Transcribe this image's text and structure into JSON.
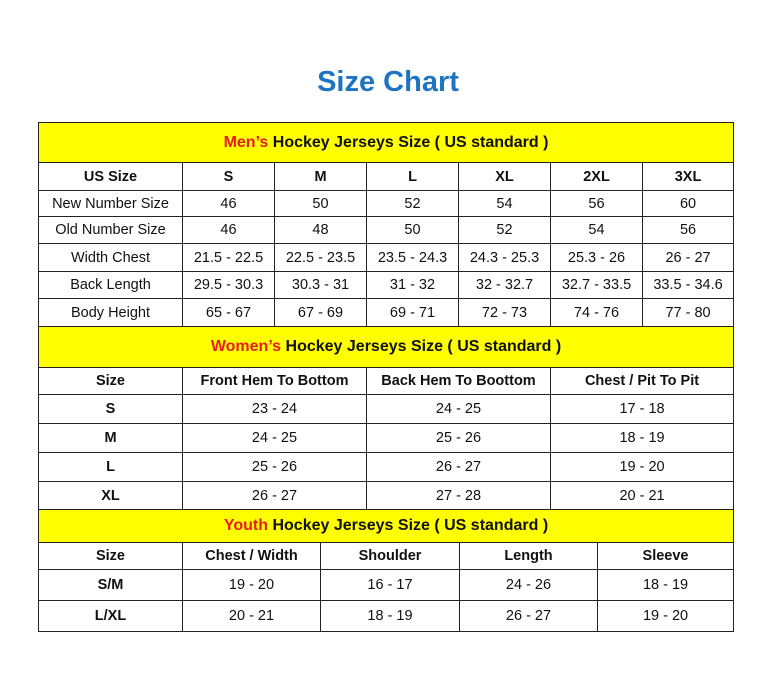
{
  "title": "Size Chart",
  "men": {
    "title_highlight": "Men’s",
    "title_rest": " Hockey Jerseys Size ( US standard )",
    "headers": [
      "US Size",
      "S",
      "M",
      "L",
      "XL",
      "2XL",
      "3XL"
    ],
    "rows": [
      [
        "New Number Size",
        "46",
        "50",
        "52",
        "54",
        "56",
        "60"
      ],
      [
        "Old Number Size",
        "46",
        "48",
        "50",
        "52",
        "54",
        "56"
      ],
      [
        "Width Chest",
        "21.5 - 22.5",
        "22.5 - 23.5",
        "23.5 - 24.3",
        "24.3 - 25.3",
        "25.3 - 26",
        "26 - 27"
      ],
      [
        "Back Length",
        "29.5 - 30.3",
        "30.3 - 31",
        "31 - 32",
        "32 - 32.7",
        "32.7 - 33.5",
        "33.5 - 34.6"
      ],
      [
        "Body Height",
        "65 - 67",
        "67 - 69",
        "69 - 71",
        "72 - 73",
        "74 - 76",
        "77 - 80"
      ]
    ]
  },
  "women": {
    "title_highlight": "Women’s",
    "title_rest": " Hockey Jerseys Size ( US standard )",
    "headers": [
      "Size",
      "Front Hem To Bottom",
      "Back Hem To Boottom",
      "Chest / Pit To Pit"
    ],
    "rows": [
      [
        "S",
        "23 - 24",
        "24 - 25",
        "17 - 18"
      ],
      [
        "M",
        "24 - 25",
        "25 - 26",
        "18 - 19"
      ],
      [
        "L",
        "25 - 26",
        "26 - 27",
        "19 - 20"
      ],
      [
        "XL",
        "26 - 27",
        "27 - 28",
        "20 - 21"
      ]
    ]
  },
  "youth": {
    "title_highlight": "Youth",
    "title_rest": " Hockey Jerseys Size ( US standard )",
    "headers": [
      "Size",
      "Chest / Width",
      "Shoulder",
      "Length",
      "Sleeve"
    ],
    "rows": [
      [
        "S/M",
        "19 - 20",
        "16 - 17",
        "24 - 26",
        "18 - 19"
      ],
      [
        "L/XL",
        "20 - 21",
        "18 - 19",
        "26 - 27",
        "19 - 20"
      ]
    ]
  }
}
